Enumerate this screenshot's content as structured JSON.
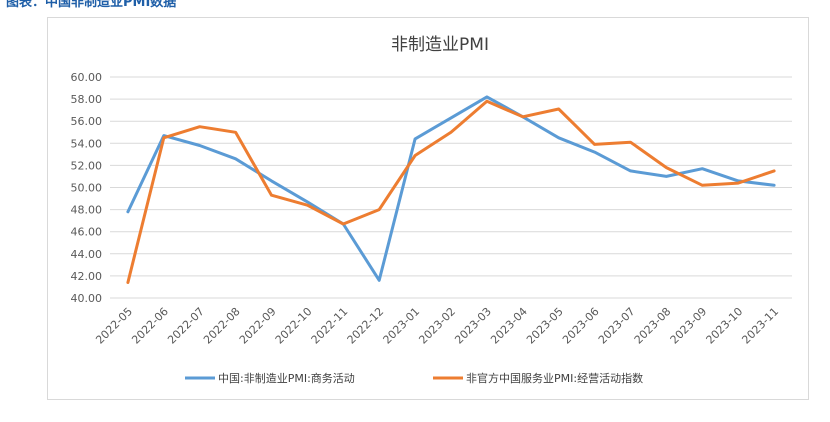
{
  "caption": "图表：中国非制造业PMI数据",
  "colors": {
    "series1": "#5b9bd5",
    "series2": "#ed7d31",
    "grid": "#d9d9d9",
    "text": "#595959"
  },
  "chart_data": {
    "type": "line",
    "title": "非制造业PMI",
    "xlabel": "",
    "ylabel": "",
    "ylim": [
      40,
      60
    ],
    "ytick_step": 2,
    "ytick_labels": [
      "40.00",
      "42.00",
      "44.00",
      "46.00",
      "48.00",
      "50.00",
      "52.00",
      "54.00",
      "56.00",
      "58.00",
      "60.00"
    ],
    "grid": true,
    "legend_position": "bottom",
    "categories": [
      "2022-05",
      "2022-06",
      "2022-07",
      "2022-08",
      "2022-09",
      "2022-10",
      "2022-11",
      "2022-12",
      "2023-01",
      "2023-02",
      "2023-03",
      "2023-04",
      "2023-05",
      "2023-06",
      "2023-07",
      "2023-08",
      "2023-09",
      "2023-10",
      "2023-11"
    ],
    "series": [
      {
        "name": "中国:非制造业PMI:商务活动",
        "color": "#5b9bd5",
        "values": [
          47.8,
          54.7,
          53.8,
          52.6,
          50.6,
          48.7,
          46.7,
          41.6,
          54.4,
          56.3,
          58.2,
          56.4,
          54.5,
          53.2,
          51.5,
          51.0,
          51.7,
          50.6,
          50.2
        ]
      },
      {
        "name": "非官方中国服务业PMI:经营活动指数",
        "color": "#ed7d31",
        "values": [
          41.4,
          54.5,
          55.5,
          55.0,
          49.3,
          48.4,
          46.7,
          48.0,
          52.9,
          55.0,
          57.8,
          56.4,
          57.1,
          53.9,
          54.1,
          51.8,
          50.2,
          50.4,
          51.5
        ]
      }
    ]
  }
}
